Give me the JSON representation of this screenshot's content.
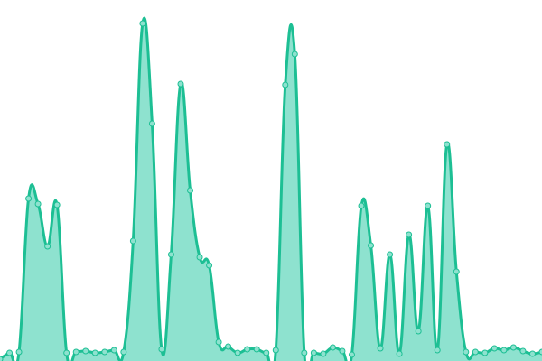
{
  "chart_data": {
    "type": "area",
    "title": "",
    "xlabel": "",
    "ylabel": "",
    "ylim": [
      0,
      400
    ],
    "grid": false,
    "legend": "none",
    "colors": {
      "line": "#1dbf94",
      "fill": "#8ee2cf",
      "point_fill": "#8ee2cf"
    },
    "values": [
      2,
      9,
      10,
      180,
      174,
      127,
      173,
      9,
      10,
      11,
      9,
      10,
      12,
      10,
      133,
      374,
      263,
      13,
      118,
      307,
      189,
      115,
      106,
      21,
      16,
      9,
      13,
      13,
      9,
      12,
      306,
      340,
      9,
      9,
      8,
      15,
      11,
      7,
      172,
      128,
      14,
      118,
      8,
      140,
      33,
      172,
      12,
      240,
      99,
      10,
      10,
      9,
      14,
      12,
      15,
      11,
      8,
      10
    ]
  }
}
